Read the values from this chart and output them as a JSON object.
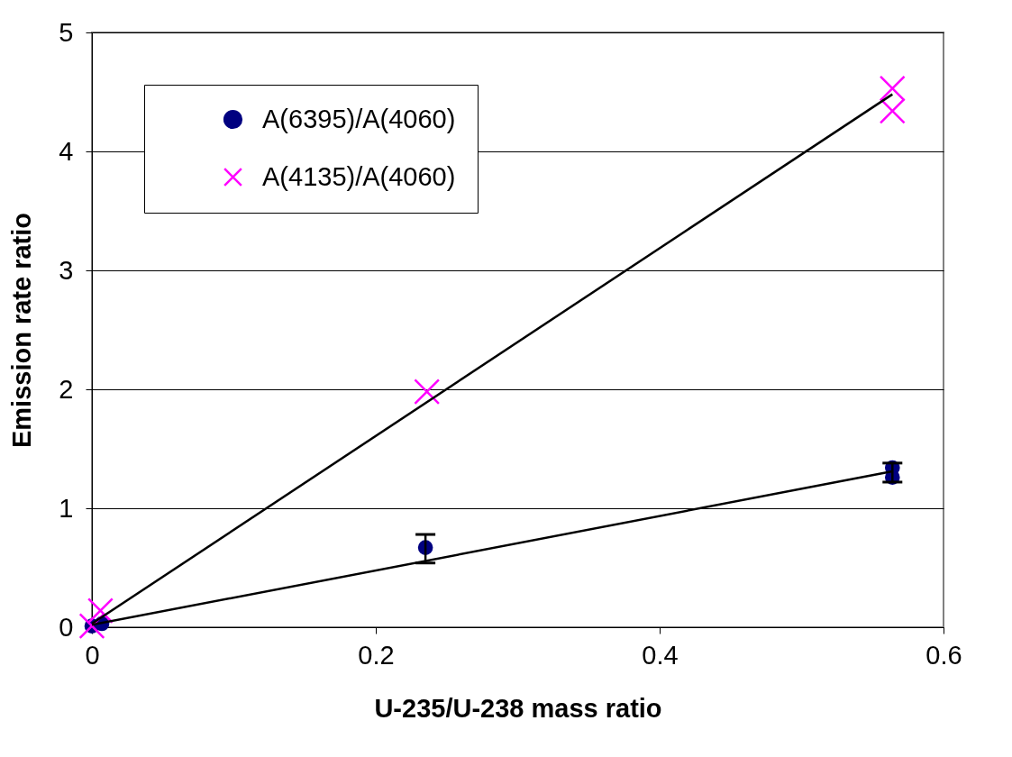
{
  "chart_data": {
    "type": "scatter",
    "xlabel": "U-235/U-238 mass ratio",
    "ylabel": "Emission rate ratio",
    "xlim": [
      0,
      0.6
    ],
    "xticks": [
      0,
      0.2,
      0.4,
      0.6
    ],
    "ylim": [
      0,
      5
    ],
    "yticks": [
      0,
      1,
      2,
      3,
      4,
      5
    ],
    "grid": "y",
    "legend": "top left",
    "series": [
      {
        "name": "A(6395)/A(4060)",
        "color": "#000080",
        "marker": "circle",
        "x": [
          0,
          0.007,
          0.235,
          0.564,
          0.564
        ],
        "values": [
          0.01,
          0.03,
          0.67,
          1.34,
          1.26
        ],
        "errors": [
          null,
          null,
          [
            0.54,
            0.78
          ],
          null,
          [
            1.22,
            1.38
          ]
        ]
      },
      {
        "name": "A(4135)/A(4060)",
        "color": "#ff00ff",
        "marker": "cross",
        "x": [
          0,
          0.006,
          0.236,
          0.564,
          0.564
        ],
        "values": [
          0.01,
          0.14,
          1.98,
          4.53,
          4.34
        ]
      },
      {
        "type": "line",
        "color": "#000000",
        "x": [
          0,
          0.564
        ],
        "values": [
          0.03,
          4.48
        ]
      },
      {
        "type": "line",
        "color": "#000000",
        "x": [
          0,
          0.564
        ],
        "values": [
          0.02,
          1.31
        ]
      }
    ]
  }
}
